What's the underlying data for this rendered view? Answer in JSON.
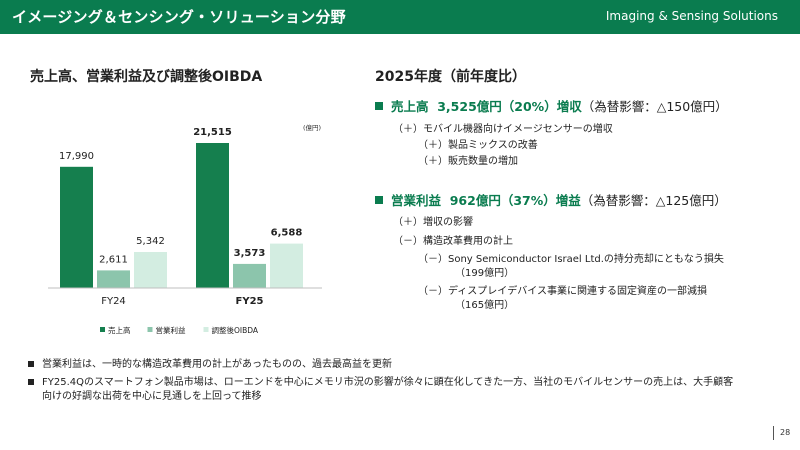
{
  "header": {
    "title": "イメージング＆センシング・ソリューション分野",
    "title_en": "Imaging & Sensing Solutions",
    "color": "#0a7c4f"
  },
  "left": {
    "title": "売上高、営業利益及び調整後OIBDA"
  },
  "chart_data": {
    "type": "bar",
    "categories": [
      "FY24",
      "FY25"
    ],
    "unit_label": "(億円)",
    "series": [
      {
        "name": "売上高",
        "values": [
          17990,
          21515
        ],
        "labels": [
          "17,990",
          "21,515"
        ],
        "color": "#157f4e"
      },
      {
        "name": "営業利益",
        "values": [
          2611,
          3573
        ],
        "labels": [
          "2,611",
          "3,573"
        ],
        "color": "#8cc5ac"
      },
      {
        "name": "調整後OIBDA",
        "values": [
          5342,
          6588
        ],
        "labels": [
          "5,342",
          "6,588"
        ],
        "color": "#d3ede1"
      }
    ],
    "bold_categories": [
      "FY25"
    ],
    "legend_position": "bottom",
    "grid": false
  },
  "right": {
    "title": "2025年度（前年度比）",
    "sales": {
      "label": "売上高",
      "amount": "3,525億円（20%）増収",
      "fx": "（為替影響：△150億円）",
      "items": [
        "（＋）モバイル機器向けイメージセンサーの増収",
        "（＋）製品ミックスの改善",
        "（＋）販売数量の増加"
      ]
    },
    "op": {
      "label": "営業利益",
      "amount": "962億円（37%）増益",
      "fx": "（為替影響：△125億円）",
      "items": [
        "（＋）増収の影響",
        "（－）構造改革費用の計上",
        "（－）Sony Semiconductor Israel Ltd.の持分売却にともなう損失",
        "（199億円）",
        "（－）ディスプレイデバイス事業に関連する固定資産の一部減損",
        "（165億円）"
      ]
    }
  },
  "bottom": {
    "bullets": [
      [
        "営業利益は、一時的な構造改革費用の計上があったものの、過去最高益を更新"
      ],
      [
        "FY25.4Qのスマートフォン製品市場は、ローエンドを中心にメモリ市況の影響が徐々に顕在化してきた一方、当社のモバイルセンサーの売上は、大手顧客",
        "向けの好調な出荷を中心に見通しを上回って推移"
      ]
    ]
  },
  "page_number": "28"
}
